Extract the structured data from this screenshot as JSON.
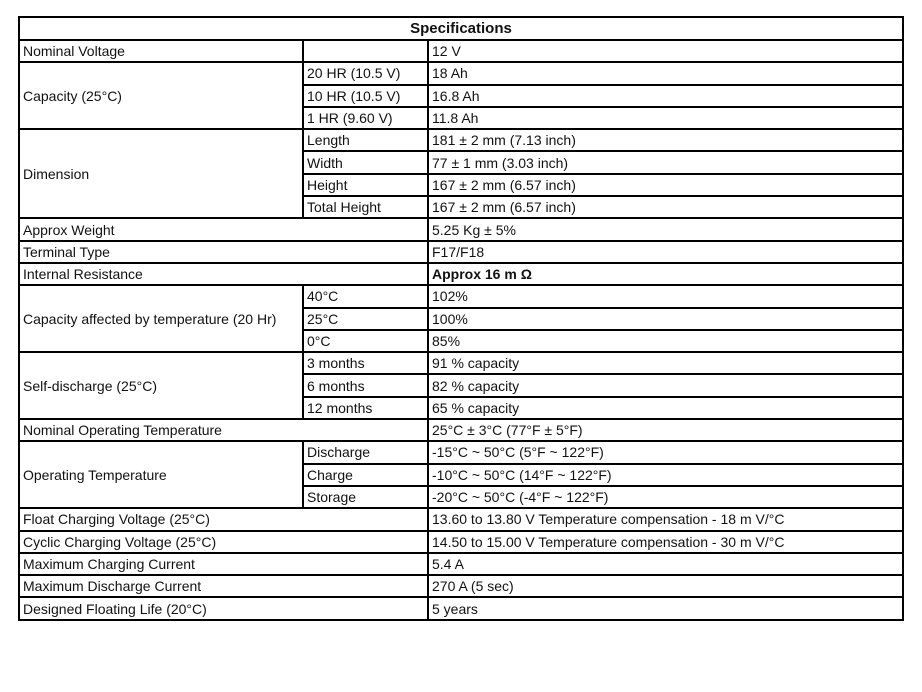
{
  "title": "Specifications",
  "rows": [
    {
      "label": "Nominal Voltage",
      "sub": [
        {
          "k": "",
          "v": "12 V"
        }
      ]
    },
    {
      "label": "Capacity (25°C)",
      "sub": [
        {
          "k": "20 HR (10.5 V)",
          "v": "18 Ah"
        },
        {
          "k": "10 HR (10.5 V)",
          "v": "16.8 Ah"
        },
        {
          "k": "1 HR (9.60 V)",
          "v": "11.8 Ah"
        }
      ]
    },
    {
      "label": "Dimension",
      "sub": [
        {
          "k": "Length",
          "v": "181 ± 2 mm (7.13 inch)"
        },
        {
          "k": "Width",
          "v": "77 ± 1 mm (3.03 inch)"
        },
        {
          "k": "Height",
          "v": "167 ± 2 mm (6.57 inch)"
        },
        {
          "k": "Total Height",
          "v": "167 ± 2 mm (6.57 inch)"
        }
      ]
    },
    {
      "label": "Approx Weight",
      "value": "5.25 Kg ± 5%"
    },
    {
      "label": "Terminal Type",
      "value": "F17/F18"
    },
    {
      "label": "Internal Resistance",
      "value": "Approx 16 m Ω",
      "bold": true
    },
    {
      "label": "Capacity affected by temperature (20 Hr)",
      "sub": [
        {
          "k": "40°C",
          "v": "102%"
        },
        {
          "k": "25°C",
          "v": "100%"
        },
        {
          "k": "0°C",
          "v": "85%"
        }
      ]
    },
    {
      "label": "Self-discharge (25°C)",
      "sub": [
        {
          "k": "3 months",
          "v": "91 % capacity"
        },
        {
          "k": "6 months",
          "v": "82 % capacity"
        },
        {
          "k": "12 months",
          "v": "65 % capacity"
        }
      ]
    },
    {
      "label": "Nominal Operating Temperature",
      "value": "25°C ± 3°C (77°F ± 5°F)"
    },
    {
      "label": "Operating Temperature",
      "sub": [
        {
          "k": "Discharge",
          "v": " -15°C ~ 50°C (5°F ~ 122°F)"
        },
        {
          "k": "Charge",
          "v": " -10°C ~ 50°C (14°F ~ 122°F)"
        },
        {
          "k": "Storage",
          "v": " -20°C ~ 50°C (-4°F ~ 122°F)"
        }
      ]
    },
    {
      "label": "Float Charging Voltage (25°C)",
      "value": "13.60 to 13.80 V Temperature compensation - 18 m V/°C"
    },
    {
      "label": "Cyclic Charging Voltage (25°C)",
      "value": "14.50 to 15.00 V Temperature compensation - 30 m V/°C"
    },
    {
      "label": "Maximum Charging Current",
      "value": "5.4 A"
    },
    {
      "label": "Maximum Discharge Current",
      "value": "270 A (5 sec)"
    },
    {
      "label": "Designed Floating Life (20°C)",
      "value": "5 years"
    }
  ]
}
